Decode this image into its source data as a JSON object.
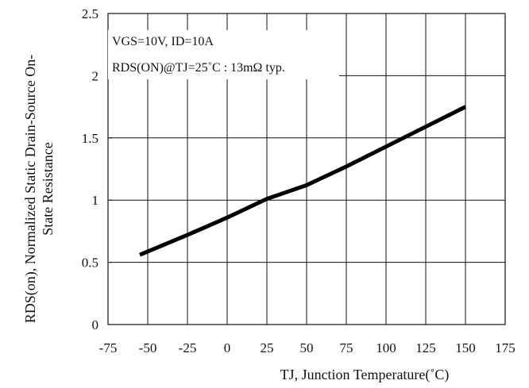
{
  "chart_data": {
    "type": "line",
    "title": "",
    "xlabel": "TJ, Junction Temperature(˚C)",
    "ylabel": "RDS(on), Normalized Static Drain-Source On-State Resistance",
    "xlim": [
      -75,
      175
    ],
    "ylim": [
      0,
      2.5
    ],
    "x_ticks": [
      -75,
      -50,
      -25,
      0,
      25,
      50,
      75,
      100,
      125,
      150,
      175
    ],
    "y_ticks": [
      0,
      0.5,
      1,
      1.5,
      2,
      2.5
    ],
    "x_tick_labels": [
      "-75",
      "-50",
      "-25",
      "0",
      "25",
      "50",
      "75",
      "100",
      "125",
      "150",
      "175"
    ],
    "y_tick_labels": [
      "0",
      "0.5",
      "1",
      "1.5",
      "2",
      "2.5"
    ],
    "grid": true,
    "legend": "none",
    "annotations": [
      "VGS=10V, ID=10A",
      "RDS(ON)@TJ=25˚C : 13mΩ typ."
    ],
    "series": [
      {
        "x": [
          -55,
          -25,
          0,
          25,
          50,
          75,
          100,
          125,
          150
        ],
        "y": [
          0.56,
          0.72,
          0.86,
          1.01,
          1.12,
          1.27,
          1.43,
          1.59,
          1.75
        ],
        "color": "#000000"
      }
    ]
  }
}
